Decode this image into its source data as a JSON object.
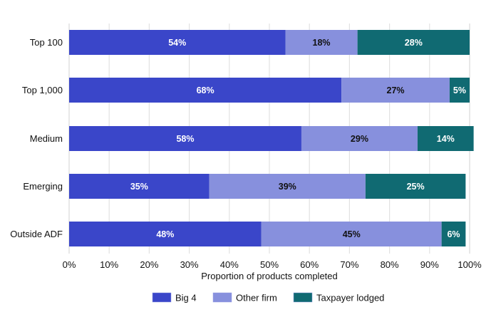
{
  "chart_data": {
    "type": "bar",
    "orientation": "horizontal",
    "stacked": true,
    "title": "",
    "xlabel": "Proportion of products completed",
    "ylabel": "",
    "xlim": [
      0,
      100
    ],
    "x_ticks": [
      "0%",
      "10%",
      "20%",
      "30%",
      "40%",
      "50%",
      "60%",
      "70%",
      "80%",
      "90%",
      "100%"
    ],
    "grid": true,
    "legend_position": "bottom",
    "categories": [
      "Top 100",
      "Top 1,000",
      "Medium",
      "Emerging",
      "Outside ADF"
    ],
    "series": [
      {
        "name": "Big 4",
        "color": "#3A46C9",
        "label_color": "#ffffff",
        "values": [
          54,
          68,
          58,
          35,
          48
        ],
        "labels": [
          "54%",
          "68%",
          "58%",
          "35%",
          "48%"
        ]
      },
      {
        "name": "Other firm",
        "color": "#8790DD",
        "label_color": "#111111",
        "values": [
          18,
          27,
          29,
          39,
          45
        ],
        "labels": [
          "18%",
          "27%",
          "29%",
          "39%",
          "45%"
        ]
      },
      {
        "name": "Taxpayer lodged",
        "color": "#106A72",
        "label_color": "#ffffff",
        "values": [
          28,
          5,
          14,
          25,
          6
        ],
        "labels": [
          "28%",
          "5%",
          "14%",
          "25%",
          "6%"
        ]
      }
    ]
  }
}
